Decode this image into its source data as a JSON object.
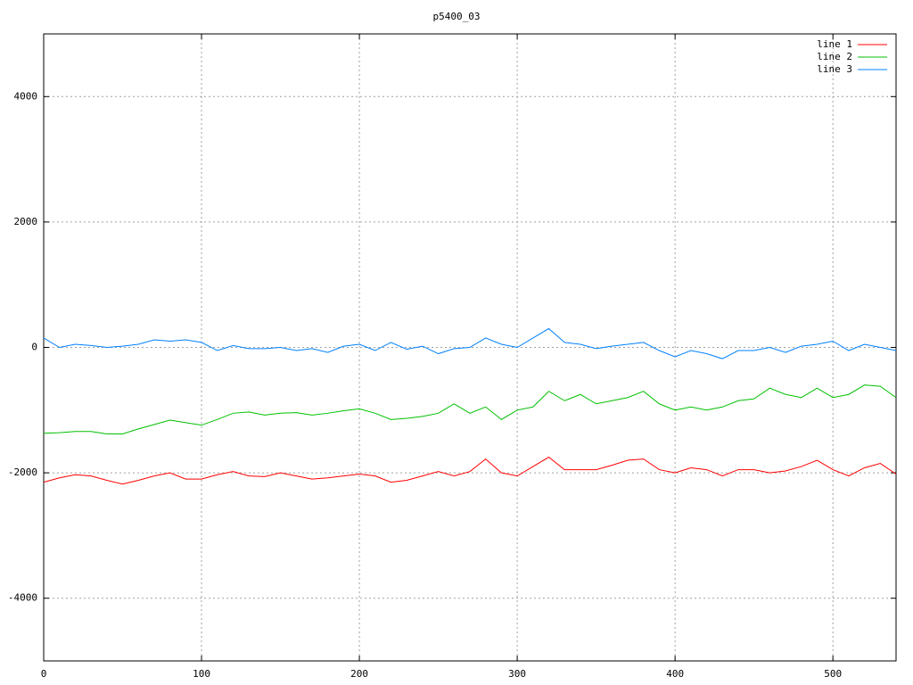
{
  "chart_data": {
    "type": "line",
    "title": "p5400_03",
    "x": [
      0,
      10,
      20,
      30,
      40,
      50,
      60,
      70,
      80,
      90,
      100,
      110,
      120,
      130,
      140,
      150,
      160,
      170,
      180,
      190,
      200,
      210,
      220,
      230,
      240,
      250,
      260,
      270,
      280,
      290,
      300,
      310,
      320,
      330,
      340,
      350,
      360,
      370,
      380,
      390,
      400,
      410,
      420,
      430,
      440,
      450,
      460,
      470,
      480,
      490,
      500,
      510,
      520,
      530,
      540
    ],
    "series": [
      {
        "name": "line 1",
        "color": "#ff0000",
        "values": [
          -2150,
          -2080,
          -2030,
          -2050,
          -2120,
          -2180,
          -2120,
          -2050,
          -2000,
          -2100,
          -2100,
          -2030,
          -1980,
          -2050,
          -2060,
          -2000,
          -2050,
          -2100,
          -2080,
          -2050,
          -2020,
          -2050,
          -2150,
          -2120,
          -2050,
          -1980,
          -2050,
          -1980,
          -1780,
          -2000,
          -2050,
          -1900,
          -1750,
          -1950,
          -1950,
          -1950,
          -1880,
          -1800,
          -1780,
          -1950,
          -2000,
          -1920,
          -1950,
          -2050,
          -1950,
          -1950,
          -2000,
          -1970,
          -1900,
          -1800,
          -1950,
          -2050,
          -1920,
          -1850,
          -2020
        ]
      },
      {
        "name": "line 2",
        "color": "#00c000",
        "values": [
          -1370,
          -1360,
          -1340,
          -1340,
          -1380,
          -1380,
          -1300,
          -1230,
          -1160,
          -1200,
          -1240,
          -1150,
          -1050,
          -1030,
          -1080,
          -1050,
          -1040,
          -1080,
          -1050,
          -1010,
          -980,
          -1050,
          -1150,
          -1130,
          -1100,
          -1050,
          -900,
          -1050,
          -950,
          -1150,
          -1000,
          -950,
          -700,
          -850,
          -750,
          -900,
          -850,
          -800,
          -700,
          -900,
          -1000,
          -950,
          -1000,
          -950,
          -850,
          -820,
          -650,
          -750,
          -800,
          -650,
          -800,
          -750,
          -600,
          -620,
          -800
        ]
      },
      {
        "name": "line 3",
        "color": "#0080ff",
        "values": [
          150,
          0,
          50,
          30,
          0,
          20,
          50,
          120,
          100,
          120,
          80,
          -50,
          30,
          -20,
          -20,
          0,
          -50,
          -20,
          -80,
          20,
          50,
          -50,
          80,
          -30,
          20,
          -100,
          -20,
          0,
          150,
          50,
          0,
          150,
          300,
          80,
          50,
          -20,
          20,
          50,
          80,
          -50,
          -150,
          -50,
          -100,
          -180,
          -50,
          -50,
          0,
          -80,
          20,
          50,
          100,
          -50,
          50,
          0,
          -50
        ]
      }
    ],
    "xlim": [
      0,
      540
    ],
    "ylim": [
      -5000,
      5000
    ],
    "xticks": [
      0,
      100,
      200,
      300,
      400,
      500
    ],
    "yticks": [
      -4000,
      -2000,
      0,
      2000,
      4000
    ],
    "grid": true,
    "legend": "top-right"
  }
}
